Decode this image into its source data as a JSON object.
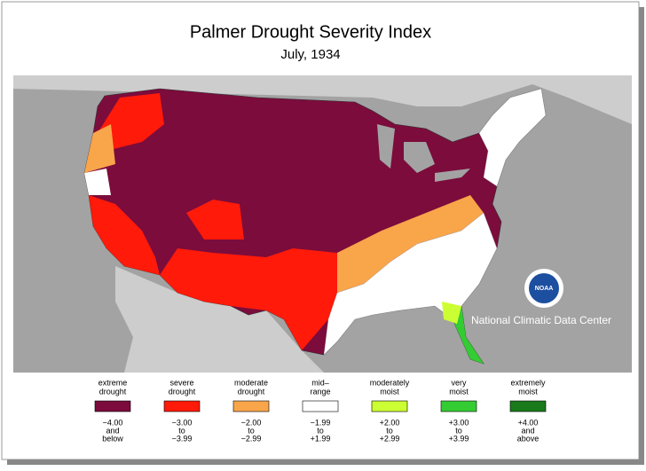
{
  "header": {
    "title": "Palmer Drought Severity Index",
    "subtitle": "July, 1934"
  },
  "credit": "National Climatic Data Center",
  "logo": "NOAA",
  "legend": [
    {
      "label": [
        "extreme",
        "drought"
      ],
      "color": "#7b0c3c",
      "range": [
        "−4.00",
        "and",
        "below"
      ]
    },
    {
      "label": [
        "severe",
        "drought"
      ],
      "color": "#ff1a0a",
      "range": [
        "−3.00",
        "to",
        "−3.99"
      ]
    },
    {
      "label": [
        "moderate",
        "drought"
      ],
      "color": "#f9a54a",
      "range": [
        "−2.00",
        "to",
        "−2.99"
      ]
    },
    {
      "label": [
        "mid–",
        "range"
      ],
      "color": "#ffffff",
      "range": [
        "−1.99",
        "to",
        "+1.99"
      ]
    },
    {
      "label": [
        "moderately",
        "moist"
      ],
      "color": "#ccff33",
      "range": [
        "+2.00",
        "to",
        "+2.99"
      ]
    },
    {
      "label": [
        "very",
        "moist"
      ],
      "color": "#33cc33",
      "range": [
        "+3.00",
        "to",
        "+3.99"
      ]
    },
    {
      "label": [
        "extremely",
        "moist"
      ],
      "color": "#1a7a1a",
      "range": [
        "+4.00",
        "and",
        "above"
      ]
    }
  ]
}
